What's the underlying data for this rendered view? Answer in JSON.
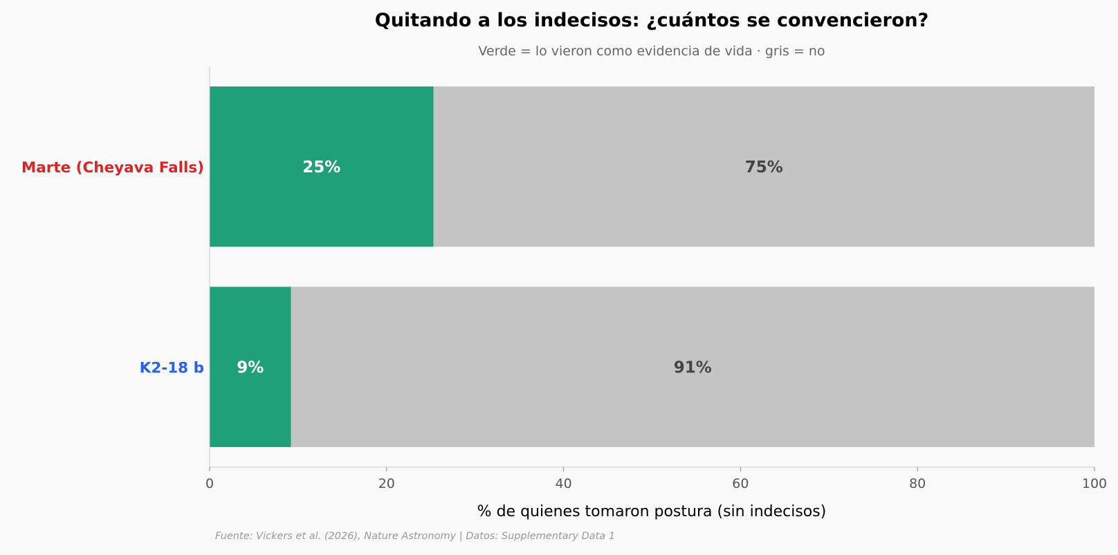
{
  "chart_data": {
    "type": "bar",
    "orientation": "horizontal",
    "stacked": true,
    "title": "Quitando a los indecisos: ¿cuántos se convencieron?",
    "subtitle": "Verde = lo vieron como evidencia de vida · gris = no",
    "xlabel": "% de quienes tomaron postura (sin indecisos)",
    "ylabel": "",
    "xlim": [
      0,
      100
    ],
    "x_ticks": [
      0,
      20,
      40,
      60,
      80,
      100
    ],
    "grid": false,
    "legend": "none",
    "categories": [
      {
        "label": "Marte (Cheyava Falls)",
        "color": "#d62728"
      },
      {
        "label": "K2-18 b",
        "color": "#2563eb"
      }
    ],
    "series": [
      {
        "color": "#1fa077",
        "label_color": "#ffffff",
        "values": [
          25.3,
          9.2
        ],
        "data_labels": [
          "25%",
          "9%"
        ]
      },
      {
        "color": "#c4c4c4",
        "label_color": "#444444",
        "values": [
          74.7,
          90.8
        ],
        "data_labels": [
          "75%",
          "91%"
        ]
      }
    ],
    "source": "Fuente: Vickers et al. (2026), Nature Astronomy | Datos: Supplementary Data 1"
  }
}
